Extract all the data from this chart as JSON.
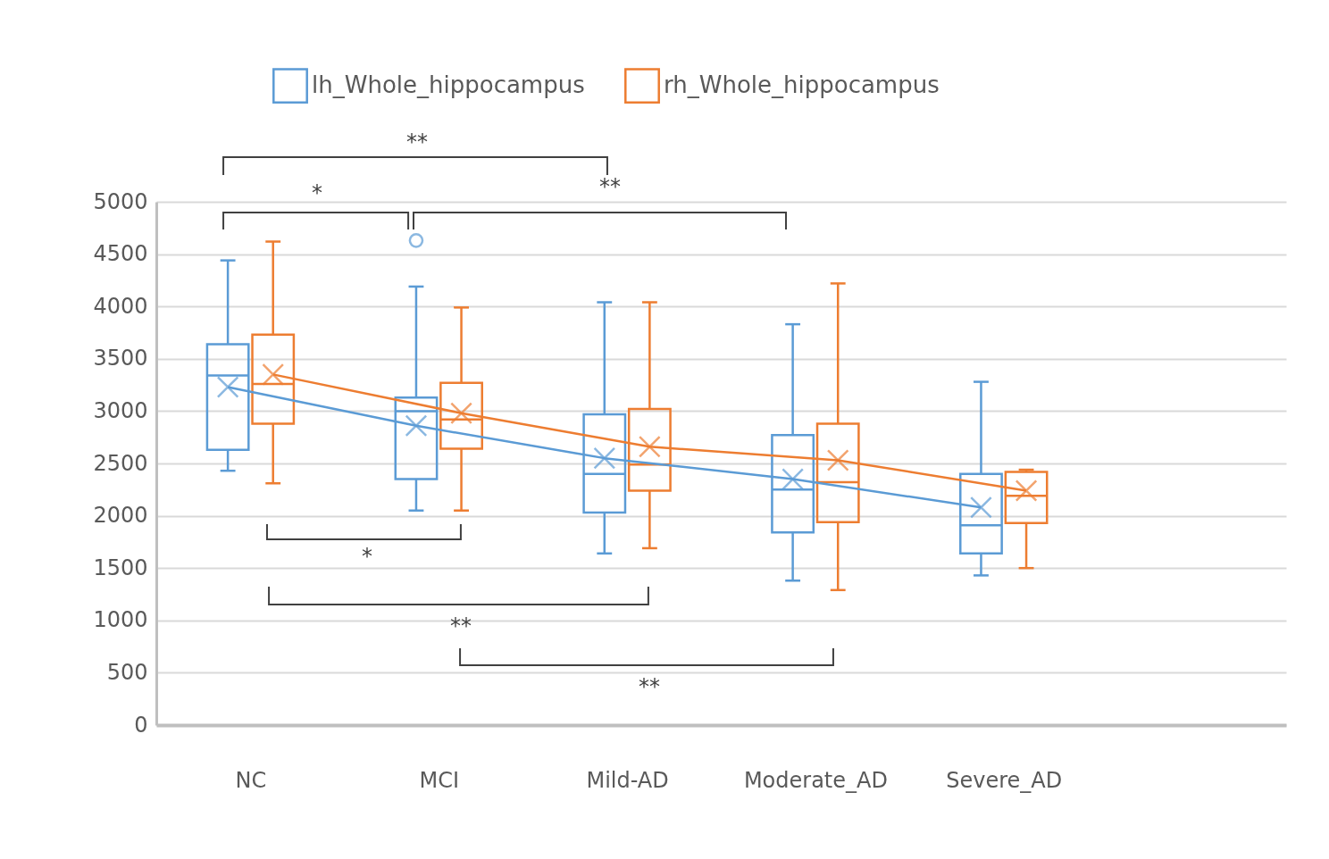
{
  "chart_data": {
    "type": "box",
    "categories": [
      "NC",
      "MCI",
      "Mild-AD",
      "Moderate_AD",
      "Severe_AD"
    ],
    "ylim": [
      0,
      5000
    ],
    "yticks": [
      0,
      500,
      1000,
      1500,
      2000,
      2500,
      3000,
      3500,
      4000,
      4500,
      5000
    ],
    "grid": "y",
    "legend": "top",
    "series": [
      {
        "name": "lh_Whole_hippocampus",
        "color": "#5b9bd5",
        "boxes": [
          {
            "low": 2430,
            "q1": 2630,
            "median": 3340,
            "q3": 3640,
            "high": 4440,
            "mean": 3230
          },
          {
            "low": 2050,
            "q1": 2350,
            "median": 3000,
            "q3": 3130,
            "high": 4190,
            "mean": 2860,
            "outliers": [
              4630
            ]
          },
          {
            "low": 1640,
            "q1": 2030,
            "median": 2400,
            "q3": 2970,
            "high": 4040,
            "mean": 2550
          },
          {
            "low": 1380,
            "q1": 1840,
            "median": 2250,
            "q3": 2770,
            "high": 3830,
            "mean": 2350
          },
          {
            "low": 1430,
            "q1": 1640,
            "median": 1910,
            "q3": 2400,
            "high": 3280,
            "mean": 2080
          }
        ]
      },
      {
        "name": "rh_Whole_hippocampus",
        "color": "#ed7d31",
        "boxes": [
          {
            "low": 2310,
            "q1": 2880,
            "median": 3260,
            "q3": 3730,
            "high": 4620,
            "mean": 3350
          },
          {
            "low": 2050,
            "q1": 2640,
            "median": 2920,
            "q3": 3270,
            "high": 3990,
            "mean": 2980
          },
          {
            "low": 1690,
            "q1": 2240,
            "median": 2490,
            "q3": 3020,
            "high": 4040,
            "mean": 2660
          },
          {
            "low": 1290,
            "q1": 1940,
            "median": 2320,
            "q3": 2880,
            "high": 4220,
            "mean": 2530
          },
          {
            "low": 1500,
            "q1": 1930,
            "median": 2190,
            "q3": 2420,
            "high": 2440,
            "mean": 2240
          }
        ]
      },
      {
        "type": "line",
        "color": "#5b9bd5",
        "values": [
          3230,
          2860,
          2550,
          2350,
          2080
        ]
      },
      {
        "type": "line",
        "color": "#ed7d31",
        "values": [
          3350,
          2980,
          2660,
          2530,
          2240
        ]
      }
    ],
    "annotations": [
      "**",
      "*",
      "**",
      "*",
      "**",
      "**"
    ]
  }
}
